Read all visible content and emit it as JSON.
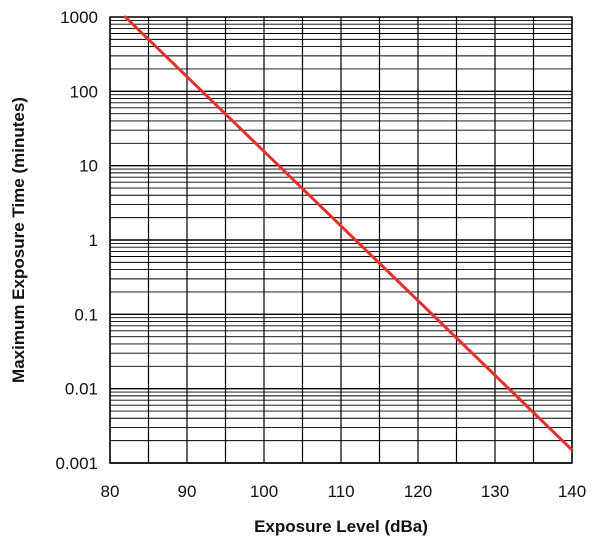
{
  "chart_data": {
    "type": "line",
    "title": "",
    "xlabel": "Exposure Level (dBa)",
    "ylabel": "Maximum Exposure Time (minutes)",
    "xlim": [
      80,
      140
    ],
    "ylim": [
      0.001,
      1000
    ],
    "yscale": "log",
    "grid": true,
    "x_ticks": [
      80,
      90,
      100,
      110,
      120,
      130,
      140
    ],
    "x_tick_labels": [
      "80",
      "90",
      "100",
      "110",
      "120",
      "130",
      "140"
    ],
    "x_minor_step": 5,
    "y_ticks": [
      1000,
      100,
      10,
      1,
      0.1,
      0.01,
      0.001
    ],
    "y_tick_labels": [
      "1000",
      "100",
      "10",
      "1",
      "0.1",
      "0.01",
      "0.001"
    ],
    "series": [
      {
        "color": "#e8302a",
        "x": [
          82,
          140
        ],
        "y": [
          1000,
          0.0015
        ]
      }
    ],
    "colors": {
      "grid": "#000000",
      "line": "#e8302a"
    }
  }
}
